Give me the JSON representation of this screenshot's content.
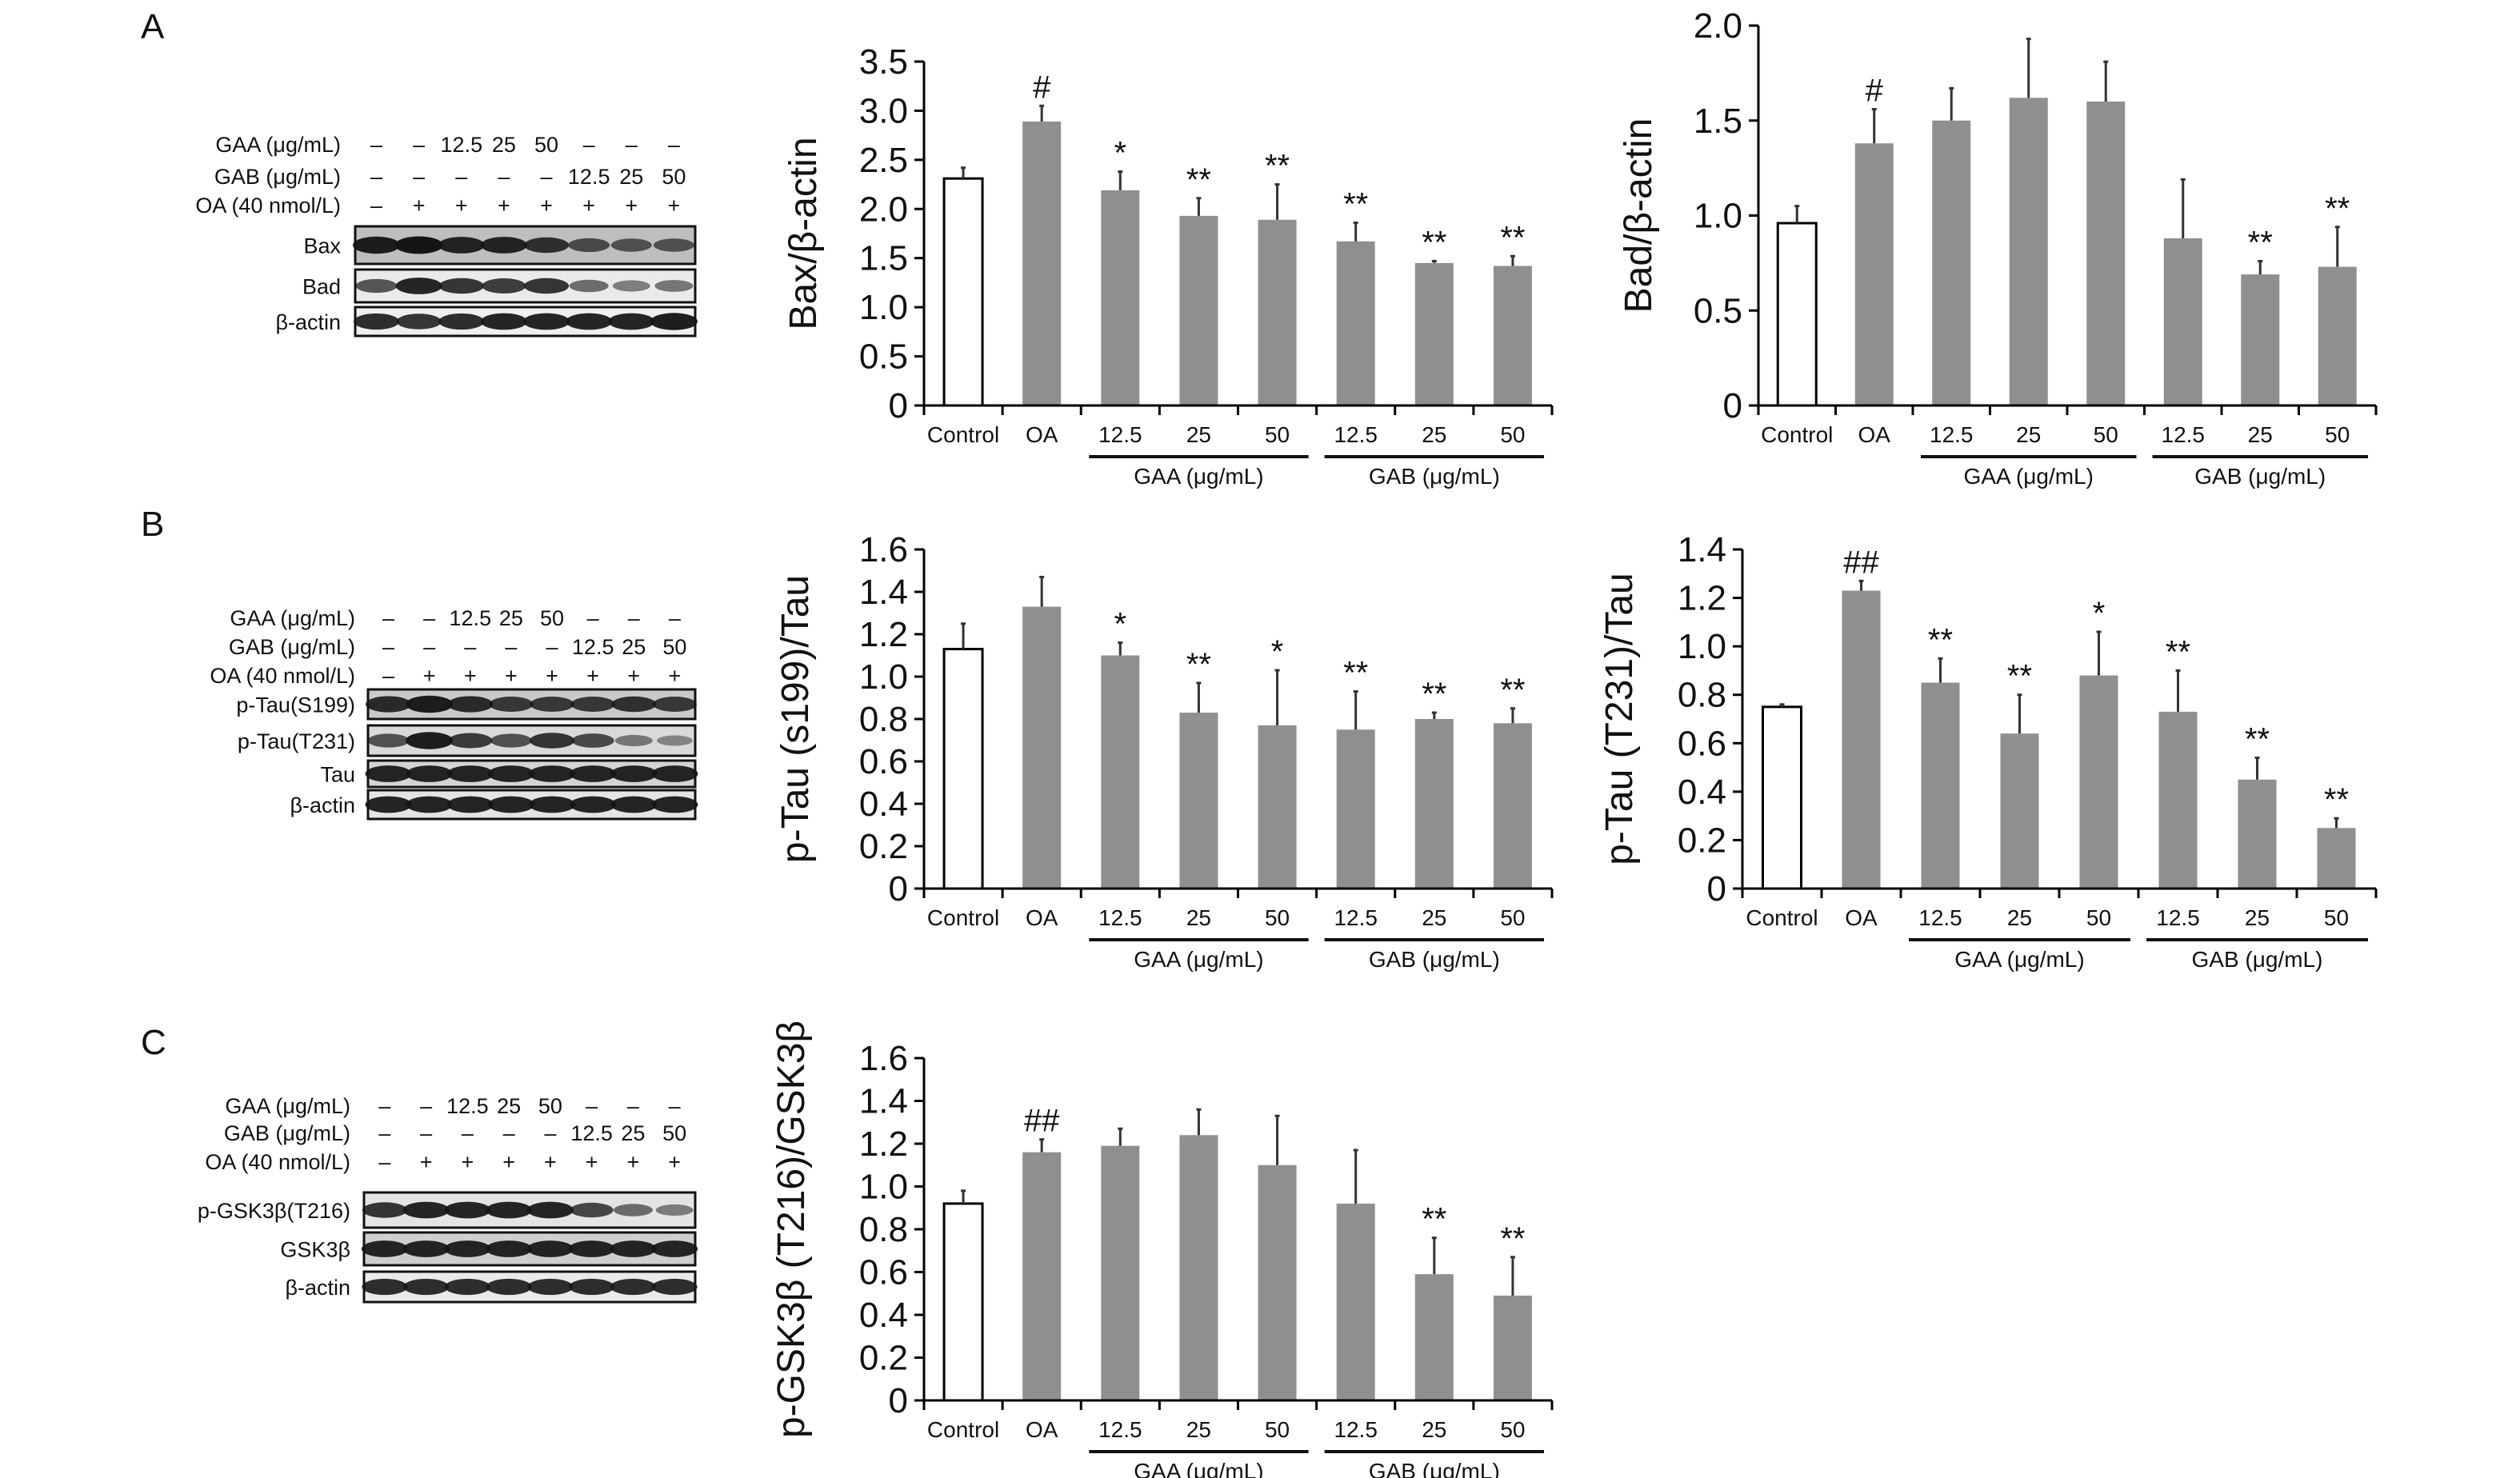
{
  "panels": [
    "A",
    "B",
    "C"
  ],
  "colors": {
    "bar_fill": "#8f8f8f",
    "control_fill": "#ffffff",
    "axis": "#000000",
    "blot_bg": "#d9d9d9",
    "band": "#151515"
  },
  "blots": [
    {
      "panel": "A",
      "conditions": [
        {
          "label": "GAA (μg/mL)",
          "values": [
            "–",
            "–",
            "12.5",
            "25",
            "50",
            "–",
            "–",
            "–"
          ]
        },
        {
          "label": "GAB (μg/mL)",
          "values": [
            "–",
            "–",
            "–",
            "–",
            "–",
            "12.5",
            "25",
            "50"
          ]
        },
        {
          "label": "OA (40 nmol/L)",
          "values": [
            "–",
            "+",
            "+",
            "+",
            "+",
            "+",
            "+",
            "+"
          ]
        }
      ],
      "bands": [
        {
          "label": "Bax",
          "intensity": [
            0.95,
            1.0,
            0.9,
            0.9,
            0.8,
            0.6,
            0.55,
            0.55
          ],
          "bg": 0.55
        },
        {
          "label": "Bad",
          "intensity": [
            0.6,
            0.9,
            0.8,
            0.75,
            0.8,
            0.45,
            0.35,
            0.4
          ],
          "bg": 0.15
        },
        {
          "label": "β-actin",
          "intensity": [
            0.85,
            0.8,
            0.85,
            0.9,
            0.9,
            0.9,
            0.9,
            0.95
          ],
          "bg": 0.1
        }
      ]
    },
    {
      "panel": "B",
      "conditions": [
        {
          "label": "GAA (μg/mL)",
          "values": [
            "–",
            "–",
            "12.5",
            "25",
            "50",
            "–",
            "–",
            "–"
          ]
        },
        {
          "label": "GAB (μg/mL)",
          "values": [
            "–",
            "–",
            "–",
            "–",
            "–",
            "12.5",
            "25",
            "50"
          ]
        },
        {
          "label": "OA (40 nmol/L)",
          "values": [
            "–",
            "+",
            "+",
            "+",
            "+",
            "+",
            "+",
            "+"
          ]
        }
      ],
      "bands": [
        {
          "label": "p-Tau(S199)",
          "intensity": [
            0.85,
            0.95,
            0.85,
            0.75,
            0.75,
            0.75,
            0.8,
            0.75
          ],
          "bg": 0.45
        },
        {
          "label": "p-Tau(T231)",
          "intensity": [
            0.6,
            0.95,
            0.75,
            0.6,
            0.8,
            0.65,
            0.35,
            0.25
          ],
          "bg": 0.3
        },
        {
          "label": "Tau",
          "intensity": [
            0.9,
            0.9,
            0.9,
            0.9,
            0.9,
            0.9,
            0.9,
            0.9
          ],
          "bg": 0.35
        },
        {
          "label": "β-actin",
          "intensity": [
            0.9,
            0.9,
            0.9,
            0.9,
            0.9,
            0.9,
            0.9,
            0.9
          ],
          "bg": 0.2
        }
      ]
    },
    {
      "panel": "C",
      "conditions": [
        {
          "label": "GAA (μg/mL)",
          "values": [
            "–",
            "–",
            "12.5",
            "25",
            "50",
            "–",
            "–",
            "–"
          ]
        },
        {
          "label": "GAB (μg/mL)",
          "values": [
            "–",
            "–",
            "–",
            "–",
            "–",
            "12.5",
            "25",
            "50"
          ]
        },
        {
          "label": "OA (40 nmol/L)",
          "values": [
            "–",
            "+",
            "+",
            "+",
            "+",
            "+",
            "+",
            "+"
          ]
        }
      ],
      "bands": [
        {
          "label": "p-GSK3β(T216)",
          "intensity": [
            0.8,
            0.9,
            0.9,
            0.9,
            0.9,
            0.7,
            0.45,
            0.35
          ],
          "bg": 0.2
        },
        {
          "label": "GSK3β",
          "intensity": [
            0.9,
            0.9,
            0.9,
            0.9,
            0.9,
            0.9,
            0.9,
            0.9
          ],
          "bg": 0.4
        },
        {
          "label": "β-actin",
          "intensity": [
            0.85,
            0.85,
            0.85,
            0.85,
            0.85,
            0.85,
            0.85,
            0.85
          ],
          "bg": 0.15
        }
      ]
    }
  ],
  "chart_data": [
    {
      "type": "bar",
      "panel": "A",
      "categories": [
        "Control",
        "OA",
        "12.5",
        "25",
        "50",
        "12.5",
        "25",
        "50"
      ],
      "groups": [
        {
          "label": "GAA (μg/mL)",
          "from": 2,
          "to": 4
        },
        {
          "label": "GAB (μg/mL)",
          "from": 5,
          "to": 7
        }
      ],
      "values": [
        2.31,
        2.89,
        2.19,
        1.93,
        1.89,
        1.67,
        1.45,
        1.42
      ],
      "error_upper": [
        2.42,
        3.05,
        2.38,
        2.11,
        2.25,
        1.86,
        1.47,
        1.52
      ],
      "annotations": [
        "",
        "#",
        "*",
        "**",
        "**",
        "**",
        "**",
        "**"
      ],
      "ylabel": "Bax/β-actin",
      "ylim": [
        0,
        3.5
      ],
      "yticks": [
        {
          "v": 0,
          "label": "0"
        },
        {
          "v": 0.5,
          "label": "0.5"
        },
        {
          "v": 1.0,
          "label": "1.0"
        },
        {
          "v": 1.5,
          "label": "1.5"
        },
        {
          "v": 2.0,
          "label": "2.0"
        },
        {
          "v": 2.5,
          "label": "2.5"
        },
        {
          "v": 3.0,
          "label": "3.0"
        },
        {
          "v": 3.5,
          "label": "3.5"
        }
      ]
    },
    {
      "type": "bar",
      "panel": "A",
      "categories": [
        "Control",
        "OA",
        "12.5",
        "25",
        "50",
        "12.5",
        "25",
        "50"
      ],
      "groups": [
        {
          "label": "GAA (μg/mL)",
          "from": 2,
          "to": 4
        },
        {
          "label": "GAB (μg/mL)",
          "from": 5,
          "to": 7
        }
      ],
      "values": [
        0.96,
        1.38,
        1.5,
        1.62,
        1.6,
        0.88,
        0.69,
        0.73
      ],
      "error_upper": [
        1.05,
        1.56,
        1.67,
        1.93,
        1.81,
        1.19,
        0.76,
        0.94
      ],
      "annotations": [
        "",
        "#",
        "",
        "",
        "",
        "",
        "**",
        "**"
      ],
      "ylabel": "Bad/β-actin",
      "ylim": [
        0,
        2.0
      ],
      "yticks": [
        {
          "v": 0,
          "label": "0"
        },
        {
          "v": 0.5,
          "label": "0.5"
        },
        {
          "v": 1.0,
          "label": "1.0"
        },
        {
          "v": 1.5,
          "label": "1.5"
        },
        {
          "v": 2.0,
          "label": "2.0"
        }
      ]
    },
    {
      "type": "bar",
      "panel": "B",
      "categories": [
        "Control",
        "OA",
        "12.5",
        "25",
        "50",
        "12.5",
        "25",
        "50"
      ],
      "groups": [
        {
          "label": "GAA (μg/mL)",
          "from": 2,
          "to": 4
        },
        {
          "label": "GAB (μg/mL)",
          "from": 5,
          "to": 7
        }
      ],
      "values": [
        1.13,
        1.33,
        1.1,
        0.83,
        0.77,
        0.75,
        0.8,
        0.78
      ],
      "error_upper": [
        1.25,
        1.47,
        1.16,
        0.97,
        1.03,
        0.93,
        0.83,
        0.85
      ],
      "annotations": [
        "",
        "",
        "*",
        "**",
        "*",
        "**",
        "**",
        "**"
      ],
      "ylabel": "p-Tau (s199)/Tau",
      "ylim": [
        0,
        1.6
      ],
      "yticks": [
        {
          "v": 0,
          "label": "0"
        },
        {
          "v": 0.2,
          "label": "0.2"
        },
        {
          "v": 0.4,
          "label": "0.4"
        },
        {
          "v": 0.6,
          "label": "0.6"
        },
        {
          "v": 0.8,
          "label": "0.8"
        },
        {
          "v": 1.0,
          "label": "1.0"
        },
        {
          "v": 1.2,
          "label": "1.2"
        },
        {
          "v": 1.4,
          "label": "1.4"
        },
        {
          "v": 1.6,
          "label": "1.6"
        }
      ]
    },
    {
      "type": "bar",
      "panel": "B",
      "categories": [
        "Control",
        "OA",
        "12.5",
        "25",
        "50",
        "12.5",
        "25",
        "50"
      ],
      "groups": [
        {
          "label": "GAA (μg/mL)",
          "from": 2,
          "to": 4
        },
        {
          "label": "GAB (μg/mL)",
          "from": 5,
          "to": 7
        }
      ],
      "values": [
        0.75,
        1.23,
        0.85,
        0.64,
        0.88,
        0.73,
        0.45,
        0.25
      ],
      "error_upper": [
        0.76,
        1.27,
        0.95,
        0.8,
        1.06,
        0.9,
        0.54,
        0.29
      ],
      "annotations": [
        "",
        "##",
        "**",
        "**",
        "*",
        "**",
        "**",
        "**"
      ],
      "ylabel": "p-Tau (T231)/Tau",
      "ylim": [
        0,
        1.4
      ],
      "yticks": [
        {
          "v": 0,
          "label": "0"
        },
        {
          "v": 0.2,
          "label": "0.2"
        },
        {
          "v": 0.4,
          "label": "0.4"
        },
        {
          "v": 0.6,
          "label": "0.6"
        },
        {
          "v": 0.8,
          "label": "0.8"
        },
        {
          "v": 1.0,
          "label": "1.0"
        },
        {
          "v": 1.2,
          "label": "1.2"
        },
        {
          "v": 1.4,
          "label": "1.4"
        }
      ]
    },
    {
      "type": "bar",
      "panel": "C",
      "categories": [
        "Control",
        "OA",
        "12.5",
        "25",
        "50",
        "12.5",
        "25",
        "50"
      ],
      "groups": [
        {
          "label": "GAA (μg/mL)",
          "from": 2,
          "to": 4
        },
        {
          "label": "GAB (μg/mL)",
          "from": 5,
          "to": 7
        }
      ],
      "values": [
        0.92,
        1.16,
        1.19,
        1.24,
        1.1,
        0.92,
        0.59,
        0.49
      ],
      "error_upper": [
        0.98,
        1.22,
        1.27,
        1.36,
        1.33,
        1.17,
        0.76,
        0.67
      ],
      "annotations": [
        "",
        "##",
        "",
        "",
        "",
        "",
        "**",
        "**"
      ],
      "ylabel": "p-GSK3β (T216)/GSK3β",
      "ylim": [
        0,
        1.6
      ],
      "yticks": [
        {
          "v": 0,
          "label": "0"
        },
        {
          "v": 0.2,
          "label": "0.2"
        },
        {
          "v": 0.4,
          "label": "0.4"
        },
        {
          "v": 0.6,
          "label": "0.6"
        },
        {
          "v": 0.8,
          "label": "0.8"
        },
        {
          "v": 1.0,
          "label": "1.0"
        },
        {
          "v": 1.2,
          "label": "1.2"
        },
        {
          "v": 1.4,
          "label": "1.4"
        },
        {
          "v": 1.6,
          "label": "1.6"
        }
      ]
    }
  ]
}
